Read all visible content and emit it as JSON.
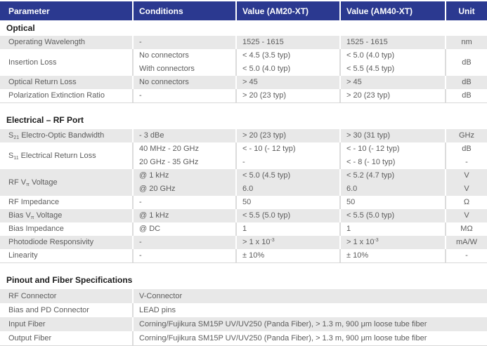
{
  "colors": {
    "header_bg": "#2b3990",
    "header_text": "#ffffff",
    "row_alt_bg": "#e8e8e8",
    "row_bg": "#ffffff",
    "body_text": "#5c5c5c",
    "section_text": "#1a1a1a",
    "border": "#d9d9d9"
  },
  "spec_table": {
    "header": {
      "columns": [
        "Parameter",
        "Conditions",
        "Value (AM20-XT)",
        "Value (AM40-XT)",
        "Unit"
      ]
    },
    "sections": [
      {
        "title": "Optical",
        "rows": [
          {
            "parameter": "Operating Wavelength",
            "conditions": [
              "-"
            ],
            "am20": [
              "1525 - 1615"
            ],
            "am40": [
              "1525 - 1615"
            ],
            "unit": [
              "nm"
            ]
          },
          {
            "parameter": "Insertion Loss",
            "conditions": [
              "No connectors",
              "With connectors"
            ],
            "am20": [
              "< 4.5 (3.5 typ)",
              "< 5.0 (4.0 typ)"
            ],
            "am40": [
              "< 5.0 (4.0 typ)",
              "< 5.5 (4.5 typ)"
            ],
            "unit": [
              "dB"
            ]
          },
          {
            "parameter": "Optical Return Loss",
            "conditions": [
              "No connectors"
            ],
            "am20": [
              "> 45"
            ],
            "am40": [
              "> 45"
            ],
            "unit": [
              "dB"
            ]
          },
          {
            "parameter": "Polarization Extinction Ratio",
            "conditions": [
              "-"
            ],
            "am20": [
              "> 20 (23 typ)"
            ],
            "am40": [
              "> 20 (23 typ)"
            ],
            "unit": [
              "dB"
            ]
          }
        ]
      },
      {
        "title": "Electrical – RF Port",
        "rows": [
          {
            "parameter": "S~21~ Electro-Optic Bandwidth",
            "conditions": [
              "- 3 dBe"
            ],
            "am20": [
              "> 20 (23 typ)"
            ],
            "am40": [
              "> 30 (31 typ)"
            ],
            "unit": [
              "GHz"
            ]
          },
          {
            "parameter": "S~11~ Electrical Return Loss",
            "conditions": [
              "40 MHz - 20 GHz",
              "20 GHz - 35 GHz"
            ],
            "am20": [
              "< - 10 (- 12 typ)",
              "-"
            ],
            "am40": [
              "< - 10 (- 12 typ)",
              "< - 8 (- 10 typ)"
            ],
            "unit": [
              "dB",
              "-"
            ]
          },
          {
            "parameter": "RF V~π~ Voltage",
            "conditions": [
              "@ 1 kHz",
              "@ 20 GHz"
            ],
            "am20": [
              "< 5.0 (4.5 typ)",
              "6.0"
            ],
            "am40": [
              "< 5.2 (4.7 typ)",
              "6.0"
            ],
            "unit": [
              "V",
              "V"
            ]
          },
          {
            "parameter": "RF Impedance",
            "conditions": [
              "-"
            ],
            "am20": [
              "50"
            ],
            "am40": [
              "50"
            ],
            "unit": [
              "Ω"
            ]
          },
          {
            "parameter": "Bias V~π~ Voltage",
            "conditions": [
              "@ 1 kHz"
            ],
            "am20": [
              "< 5.5 (5.0 typ)"
            ],
            "am40": [
              "< 5.5 (5.0 typ)"
            ],
            "unit": [
              "V"
            ]
          },
          {
            "parameter": "Bias Impedance",
            "conditions": [
              "@ DC"
            ],
            "am20": [
              "1"
            ],
            "am40": [
              "1"
            ],
            "unit": [
              "MΩ"
            ]
          },
          {
            "parameter": "Photodiode Responsivity",
            "conditions": [
              "-"
            ],
            "am20": [
              "> 1 x 10^-3^"
            ],
            "am40": [
              "> 1 x 10^-3^"
            ],
            "unit": [
              "mA/W"
            ]
          },
          {
            "parameter": "Linearity",
            "conditions": [
              "-"
            ],
            "am20": [
              "± 10%"
            ],
            "am40": [
              "± 10%"
            ],
            "unit": [
              "-"
            ]
          }
        ]
      },
      {
        "title": "Pinout and Fiber Specifications",
        "rows": [
          {
            "parameter": "RF Connector",
            "span": "V-Connector"
          },
          {
            "parameter": "Bias and PD Connector",
            "span": "LEAD pins"
          },
          {
            "parameter": "Input Fiber",
            "span": "Corning/Fujikura SM15P UV/UV250 (Panda Fiber), > 1.3 m, 900 μm loose tube fiber"
          },
          {
            "parameter": "Output Fiber",
            "span": "Corning/Fujikura SM15P UV/UV250 (Panda Fiber), > 1.3 m, 900 μm loose tube fiber"
          }
        ]
      }
    ]
  }
}
